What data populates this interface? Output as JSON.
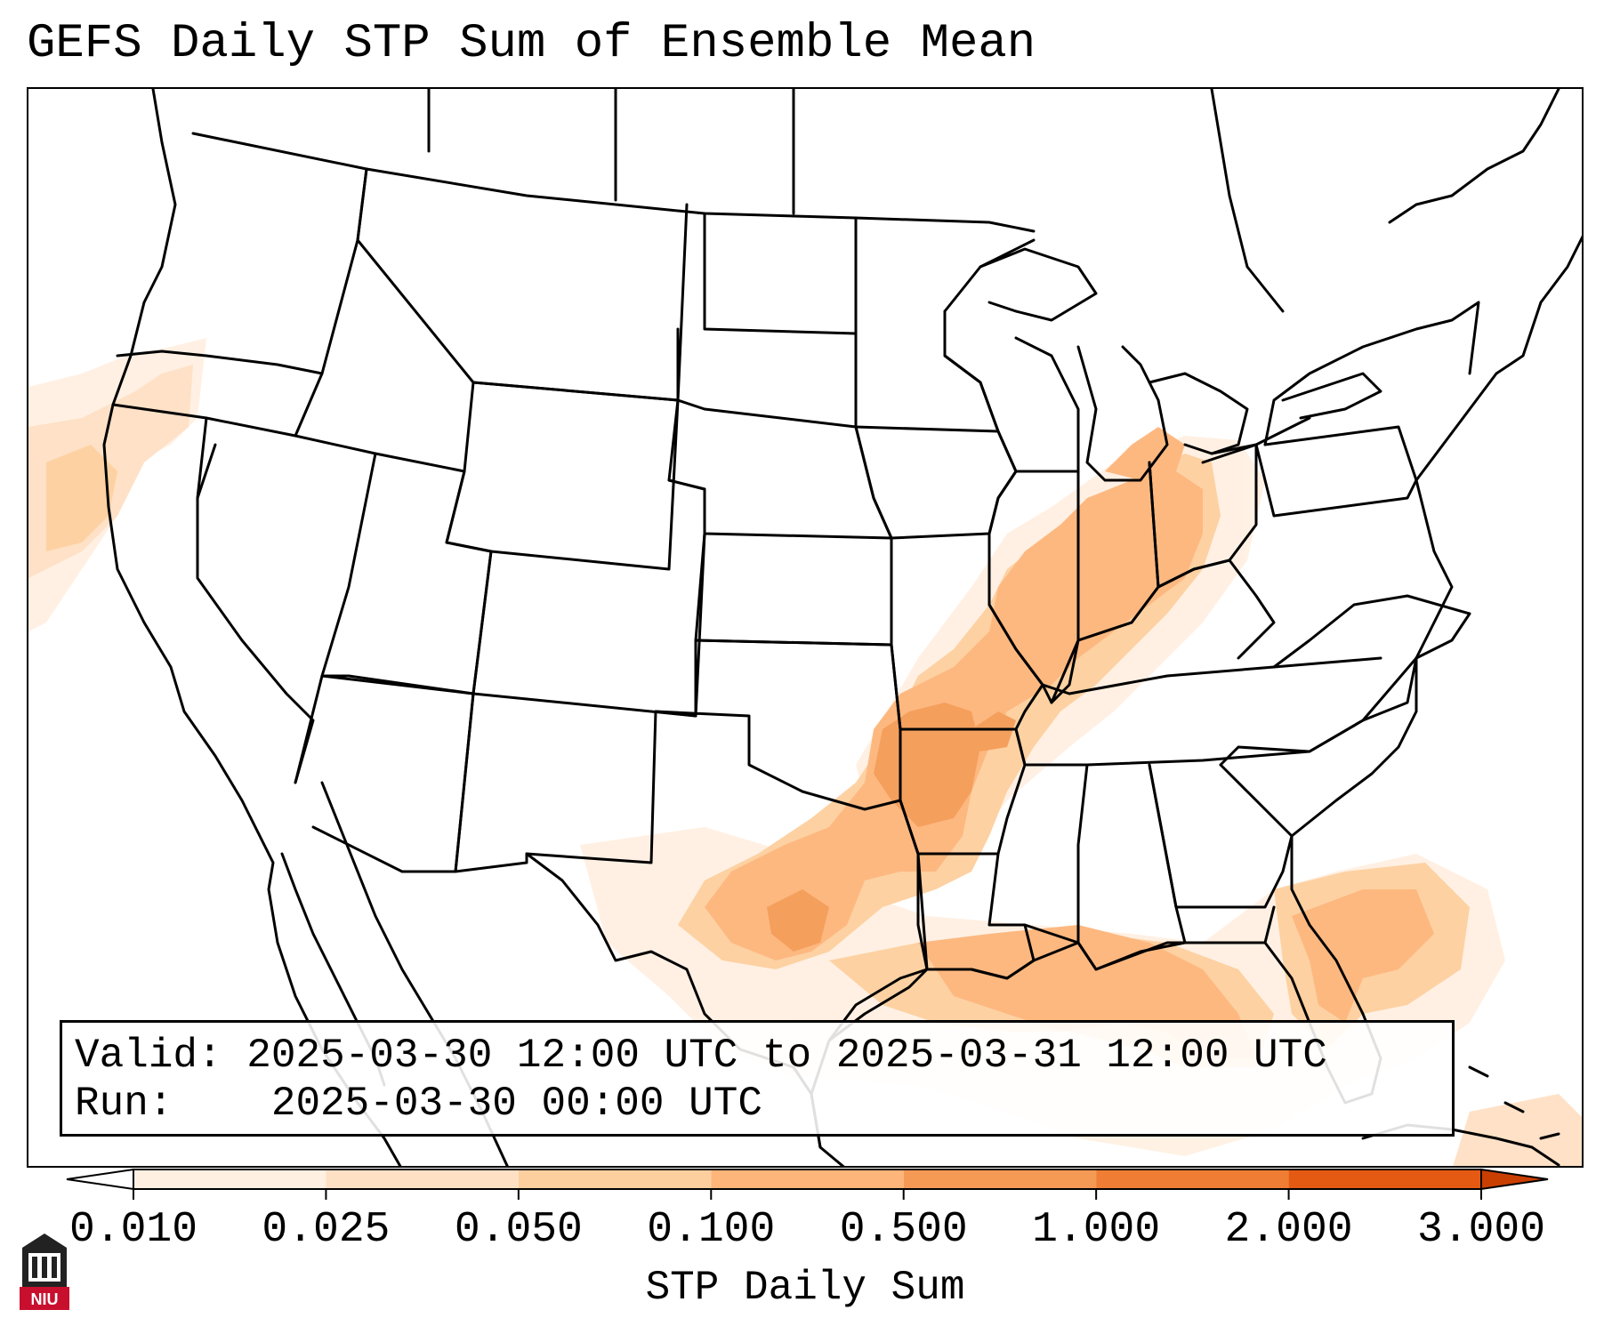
{
  "title": "GEFS Daily STP Sum of Ensemble Mean",
  "info": {
    "valid_label": "Valid:",
    "valid_value": "2025-03-30 12:00 UTC to 2025-03-31 12:00 UTC",
    "run_label": "Run:",
    "run_value": "2025-03-30 00:00 UTC"
  },
  "colorbar": {
    "label": "STP Daily Sum",
    "ticks": [
      "0.010",
      "0.025",
      "0.050",
      "0.100",
      "0.500",
      "1.000",
      "2.000",
      "3.000"
    ],
    "colors": [
      "#fff0e2",
      "#fee0c4",
      "#fdcf9e",
      "#fdb57a",
      "#f59a55",
      "#ef7d33",
      "#e55a12",
      "#c93f02"
    ],
    "extend": "both"
  },
  "logo": {
    "text": "NIU",
    "color": "#c8102e"
  }
}
